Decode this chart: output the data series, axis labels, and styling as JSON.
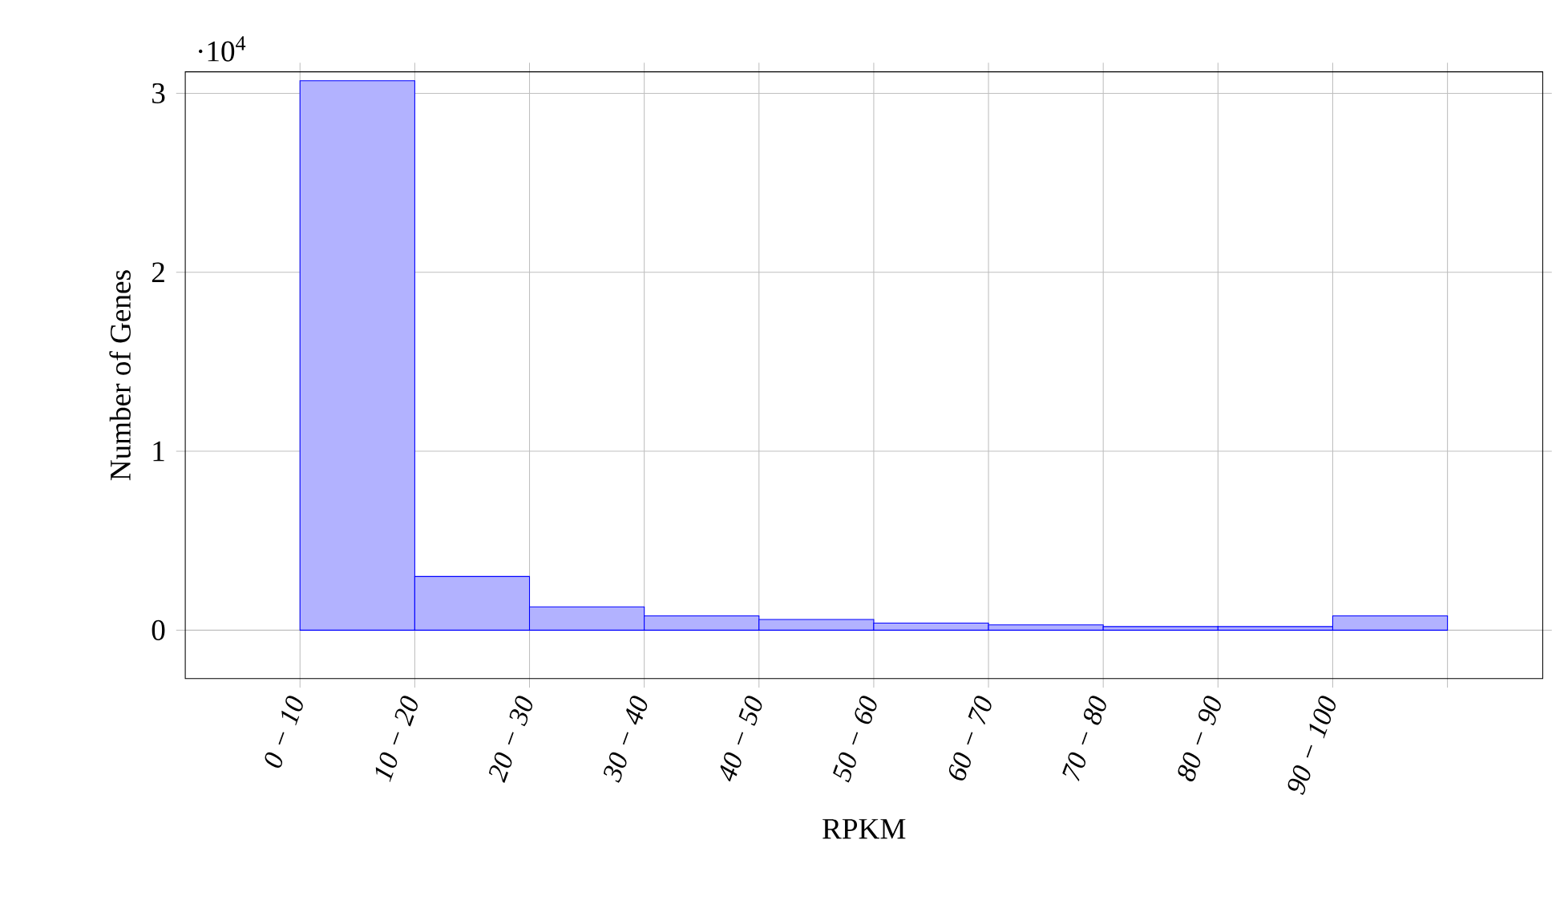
{
  "chart_data": {
    "type": "bar",
    "xlabel": "RPKM",
    "ylabel": "Number of Genes",
    "categories": [
      "0 − 10",
      "10 − 20",
      "20 − 30",
      "30 − 40",
      "40 − 50",
      "50 − 60",
      "60 − 70",
      "70 − 80",
      "80 − 90",
      "90 − 100"
    ],
    "values": [
      3.07,
      0.3,
      0.13,
      0.08,
      0.06,
      0.04,
      0.03,
      0.02,
      0.02,
      0.08
    ],
    "color": "#0000ff",
    "ylim": [
      -0.27,
      3.12
    ],
    "yticks": [
      0,
      1,
      2,
      3
    ],
    "annotations": [
      "·10$^{4}$"
    ],
    "grid": true
  }
}
